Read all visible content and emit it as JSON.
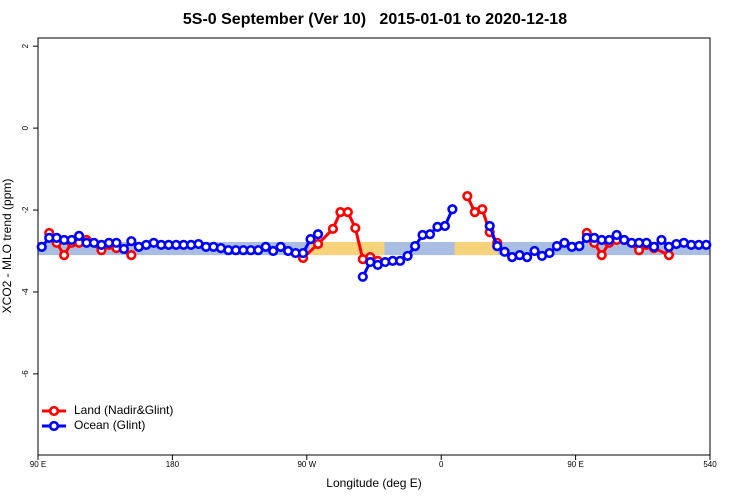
{
  "chart_data": {
    "type": "line",
    "title": "5S-0 September (Ver 10)   2015-01-01 to 2020-12-18",
    "xlabel": "Longitude (deg E)",
    "ylabel": "XCO2 - MLO trend (ppm)",
    "xlim": [
      90,
      540
    ],
    "ylim": [
      -7.98,
      2.2
    ],
    "xticks": [
      {
        "value": 90,
        "label": "90 E"
      },
      180,
      {
        "value": 270,
        "label": "90 W"
      },
      {
        "value": 360,
        "label": "0"
      },
      {
        "value": 450,
        "label": "90 E"
      },
      540
    ],
    "yticks": [
      2,
      0,
      -2,
      -4,
      -6
    ],
    "legend": "bottom-left",
    "band_ylim": [
      -3.1,
      -2.78
    ],
    "band_color": "#a9bee2",
    "land_spans": [
      [
        272,
        322
      ],
      [
        369,
        398
      ]
    ],
    "land_color": "#f6d27a",
    "series": [
      {
        "name": "Land (Nadir&Glint)",
        "color": "#ff0000",
        "x": [
          97.5,
          102.5,
          107.5,
          112.5,
          117.5,
          122.5,
          132.5,
          137.5,
          142.5,
          152.5,
          210,
          267.5,
          277.5,
          287.5,
          292.5,
          297.5,
          302.5,
          307.5,
          312.5,
          317.5,
          350,
          377.5,
          382.5,
          387.5,
          392.5,
          397.5,
          430,
          457.5,
          462.5,
          467.5,
          472.5,
          477.5,
          482.5,
          492.5,
          497.5,
          502.5,
          512.5
        ],
        "values": [
          -2.56,
          -2.8,
          -3.1,
          -2.8,
          -2.8,
          -2.73,
          -2.98,
          -2.85,
          -2.93,
          -3.1,
          null,
          -3.17,
          -2.83,
          -2.46,
          -2.05,
          -2.05,
          -2.44,
          -3.2,
          -3.15,
          -3.24,
          null,
          -1.66,
          -2.05,
          -1.98,
          -2.54,
          -2.8,
          null,
          -2.56,
          -2.8,
          -3.1,
          -2.8,
          -2.73,
          -2.73,
          -2.98,
          -2.85,
          -2.93,
          -3.1
        ]
      },
      {
        "name": "Ocean (Glint)",
        "color": "#0000ff",
        "x": [
          92.5,
          97.5,
          102.5,
          107.5,
          112.5,
          117.5,
          122.5,
          127.5,
          132.5,
          137.5,
          142.5,
          147.5,
          152.5,
          157.5,
          162.5,
          167.5,
          172.5,
          177.5,
          182.5,
          187.5,
          192.5,
          197.5,
          202.5,
          207.5,
          212.5,
          217.5,
          222.5,
          227.5,
          232.5,
          237.5,
          242.5,
          247.5,
          252.5,
          257.5,
          262.5,
          267.5,
          272.5,
          277.5,
          282.5,
          287.5,
          292.5,
          297.5,
          302.5,
          307.5,
          312.5,
          317.5,
          322.5,
          327.5,
          332.5,
          337.5,
          342.5,
          347.5,
          352.5,
          357.5,
          362.5,
          367.5,
          372.5,
          377.5,
          382.5,
          387.5,
          392.5,
          397.5,
          402.5,
          407.5,
          412.5,
          417.5,
          422.5,
          427.5,
          432.5,
          437.5,
          442.5,
          447.5,
          452.5,
          457.5,
          462.5,
          467.5,
          472.5,
          477.5,
          482.5,
          487.5,
          492.5,
          497.5,
          502.5,
          507.5,
          512.5,
          517.5,
          522.5,
          527.5,
          532.5,
          537.5
        ],
        "values": [
          -2.9,
          -2.68,
          -2.68,
          -2.73,
          -2.73,
          -2.63,
          -2.8,
          -2.8,
          -2.85,
          -2.8,
          -2.8,
          -2.95,
          -2.76,
          -2.9,
          -2.85,
          -2.8,
          -2.85,
          -2.85,
          -2.85,
          -2.85,
          -2.85,
          -2.83,
          -2.9,
          -2.9,
          -2.93,
          -2.98,
          -2.98,
          -2.98,
          -2.98,
          -2.98,
          -2.9,
          -3.0,
          -2.9,
          -3.0,
          -3.05,
          -3.05,
          -2.71,
          -2.59,
          null,
          null,
          null,
          null,
          null,
          -3.63,
          -3.27,
          -3.34,
          -3.27,
          -3.24,
          -3.24,
          -3.12,
          -2.88,
          -2.61,
          -2.59,
          -2.41,
          -2.39,
          -1.98,
          null,
          null,
          null,
          null,
          -2.39,
          -2.88,
          -3.02,
          -3.15,
          -3.1,
          -3.15,
          -3.0,
          -3.12,
          -3.05,
          -2.88,
          -2.8,
          -2.9,
          -2.88,
          -2.68,
          -2.68,
          -2.73,
          -2.73,
          -2.61,
          -2.73,
          -2.8,
          -2.8,
          -2.8,
          -2.9,
          -2.73,
          -2.9,
          -2.83,
          -2.8,
          -2.85,
          -2.85,
          -2.85
        ]
      }
    ]
  }
}
